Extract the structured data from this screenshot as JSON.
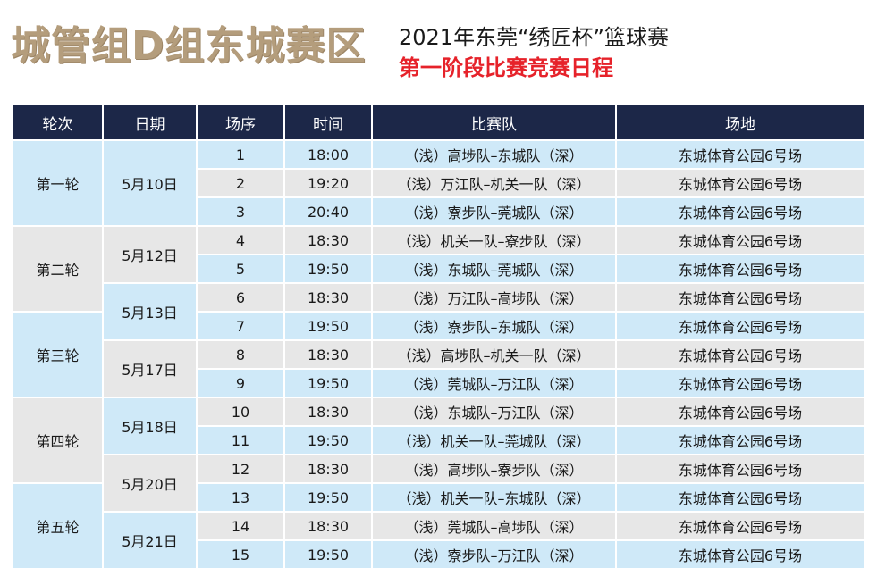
{
  "header": {
    "title": "城管组D组东城赛区",
    "subtitle": "2021年东莞“绣匠杯”篮球赛",
    "subtitle2": "第一阶段比赛竞赛日程"
  },
  "table": {
    "columns": [
      "轮次",
      "日期",
      "场序",
      "时间",
      "比赛队",
      "场地"
    ],
    "rounds": [
      "第一轮",
      "第二轮",
      "第三轮",
      "第四轮",
      "第五轮"
    ],
    "dates": [
      "5月10日",
      "5月12日",
      "5月13日",
      "5月17日",
      "5月18日",
      "5月20日",
      "5月21日"
    ],
    "rows": [
      {
        "no": "1",
        "time": "18:00",
        "match": "（浅）高埗队–东城队（深）",
        "venue": "东城体育公园6号场"
      },
      {
        "no": "2",
        "time": "19:20",
        "match": "（浅）万江队–机关一队（深）",
        "venue": "东城体育公园6号场"
      },
      {
        "no": "3",
        "time": "20:40",
        "match": "（浅）寮步队–莞城队（深）",
        "venue": "东城体育公园6号场"
      },
      {
        "no": "4",
        "time": "18:30",
        "match": "（浅）机关一队–寮步队（深）",
        "venue": "东城体育公园6号场"
      },
      {
        "no": "5",
        "time": "19:50",
        "match": "（浅）东城队–莞城队（深）",
        "venue": "东城体育公园6号场"
      },
      {
        "no": "6",
        "time": "18:30",
        "match": "（浅）万江队–高埗队（深）",
        "venue": "东城体育公园6号场"
      },
      {
        "no": "7",
        "time": "19:50",
        "match": "（浅）寮步队–东城队（深）",
        "venue": "东城体育公园6号场"
      },
      {
        "no": "8",
        "time": "18:30",
        "match": "（浅）高埗队–机关一队（深）",
        "venue": "东城体育公园6号场"
      },
      {
        "no": "9",
        "time": "19:50",
        "match": "（浅）莞城队–万江队（深）",
        "venue": "东城体育公园6号场"
      },
      {
        "no": "10",
        "time": "18:30",
        "match": "（浅）东城队–万江队（深）",
        "venue": "东城体育公园6号场"
      },
      {
        "no": "11",
        "time": "19:50",
        "match": "（浅）机关一队–莞城队（深）",
        "venue": "东城体育公园6号场"
      },
      {
        "no": "12",
        "time": "18:30",
        "match": "（浅）高埗队–寮步队（深）",
        "venue": "东城体育公园6号场"
      },
      {
        "no": "13",
        "time": "19:50",
        "match": "（浅）机关一队–东城队（深）",
        "venue": "东城体育公园6号场"
      },
      {
        "no": "14",
        "time": "18:30",
        "match": "（浅）莞城队–高埗队（深）",
        "venue": "东城体育公园6号场"
      },
      {
        "no": "15",
        "time": "19:50",
        "match": "（浅）寮步队–万江队（深）",
        "venue": "东城体育公园6号场"
      }
    ]
  },
  "colors": {
    "header_bg": "#1c2748",
    "row_blue": "#cfe9f8",
    "row_gray": "#e7e7e7",
    "title_gold": "#b49d7c",
    "subtitle_red": "#e6222a"
  }
}
